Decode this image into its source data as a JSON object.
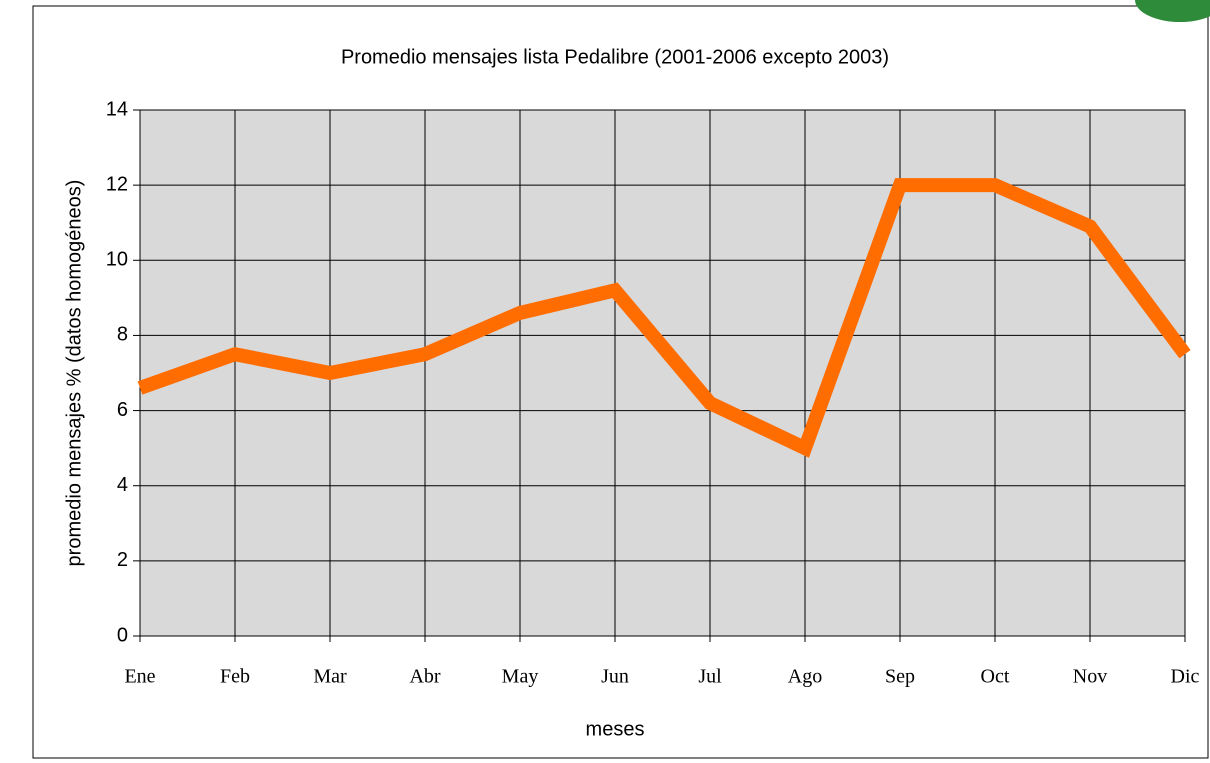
{
  "chart_data": {
    "type": "line",
    "title": "Promedio mensajes lista Pedalibre (2001-2006 excepto 2003)",
    "xlabel": "meses",
    "ylabel": "promedio mensajes % (datos homogéneos)",
    "categories": [
      "Ene",
      "Feb",
      "Mar",
      "Abr",
      "May",
      "Jun",
      "Jul",
      "Ago",
      "Sep",
      "Oct",
      "Nov",
      "Dic"
    ],
    "series": [
      {
        "name": "promedio",
        "color": "#ff6d00",
        "values": [
          6.6,
          7.5,
          7.0,
          7.5,
          8.6,
          9.2,
          6.2,
          5.0,
          12.0,
          12.0,
          10.9,
          7.5
        ]
      }
    ],
    "ylim": [
      0,
      14
    ],
    "yticks": [
      0,
      2,
      4,
      6,
      8,
      10,
      12,
      14
    ],
    "grid": true
  }
}
